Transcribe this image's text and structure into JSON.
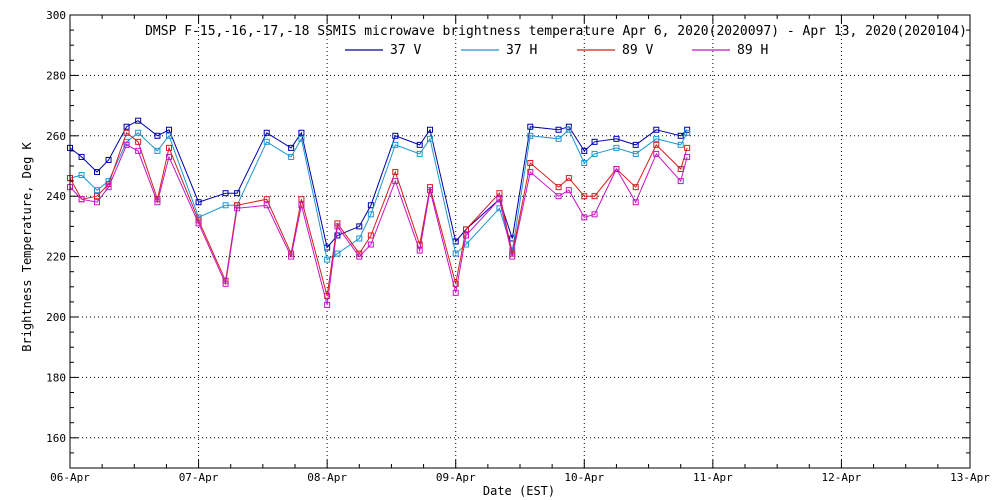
{
  "chart_data": {
    "type": "line",
    "title": "DMSP F-15,-16,-17,-18 SSMIS microwave brightness temperature Apr  6, 2020(2020097) - Apr 13, 2020(2020104)",
    "xlabel": "Date (EST)",
    "ylabel": "Brightness Temperature, Deg K",
    "xlim": [
      0,
      7
    ],
    "ylim": [
      150,
      300
    ],
    "x_ticks": [
      0,
      1,
      2,
      3,
      4,
      5,
      6,
      7
    ],
    "x_tick_labels": [
      "06-Apr",
      "07-Apr",
      "08-Apr",
      "09-Apr",
      "10-Apr",
      "11-Apr",
      "12-Apr",
      "13-Apr"
    ],
    "y_ticks": [
      160,
      180,
      200,
      220,
      240,
      260,
      280,
      300
    ],
    "grid": true,
    "legend_position": "top-center",
    "x": [
      0.0,
      0.09,
      0.21,
      0.3,
      0.44,
      0.53,
      0.68,
      0.77,
      1.0,
      1.21,
      1.3,
      1.53,
      1.72,
      1.8,
      2.0,
      2.08,
      2.25,
      2.34,
      2.53,
      2.72,
      2.8,
      3.0,
      3.08,
      3.34,
      3.44,
      3.58,
      3.8,
      3.88,
      4.0,
      4.08,
      4.25,
      4.4,
      4.56,
      4.75,
      4.8,
      4.95
    ],
    "series": [
      {
        "name": "37 V",
        "color": "#0000a8",
        "values": [
          256,
          253,
          248,
          252,
          263,
          265,
          260,
          262,
          238,
          241,
          241,
          261,
          256,
          261,
          223,
          227,
          230,
          237,
          260,
          257,
          262,
          225,
          229,
          239,
          226,
          263,
          262,
          263,
          255,
          258,
          259,
          257,
          262,
          260,
          262,
          null
        ]
      },
      {
        "name": "37 H",
        "color": "#1e96d2",
        "values": [
          246,
          247,
          242,
          245,
          258,
          261,
          255,
          260,
          233,
          237,
          237,
          258,
          253,
          259,
          219,
          221,
          226,
          234,
          257,
          254,
          259,
          221,
          224,
          236,
          222,
          260,
          259,
          262,
          251,
          254,
          256,
          254,
          259,
          257,
          261,
          null
        ]
      },
      {
        "name": "89 V",
        "color": "#d21e1e",
        "values": [
          246,
          239,
          240,
          244,
          261,
          258,
          239,
          256,
          232,
          212,
          237,
          239,
          221,
          239,
          207,
          231,
          221,
          227,
          248,
          224,
          243,
          211,
          229,
          241,
          221,
          251,
          243,
          246,
          240,
          240,
          249,
          243,
          257,
          249,
          256,
          null
        ]
      },
      {
        "name": "89 H",
        "color": "#c814c8",
        "values": [
          243,
          239,
          238,
          243,
          257,
          255,
          238,
          253,
          231,
          211,
          236,
          237,
          220,
          237,
          204,
          230,
          220,
          224,
          245,
          222,
          242,
          208,
          227,
          239,
          220,
          248,
          240,
          242,
          233,
          234,
          249,
          238,
          254,
          245,
          253,
          null
        ]
      }
    ]
  }
}
